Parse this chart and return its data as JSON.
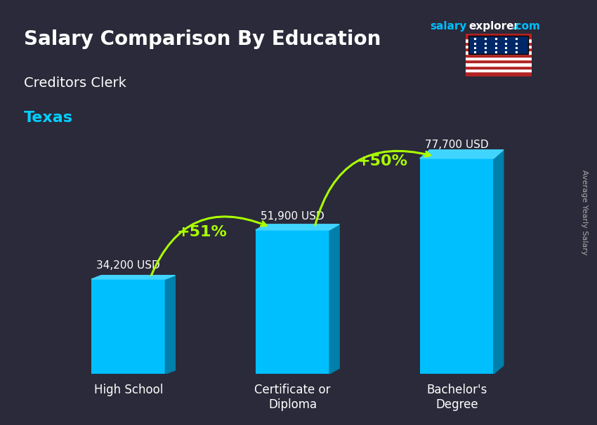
{
  "title": "Salary Comparison By Education",
  "subtitle1": "Creditors Clerk",
  "subtitle2": "Texas",
  "categories": [
    "High School",
    "Certificate or\nDiploma",
    "Bachelor's\nDegree"
  ],
  "values": [
    34200,
    51900,
    77700
  ],
  "value_labels": [
    "34,200 USD",
    "51,900 USD",
    "77,700 USD"
  ],
  "pct_labels": [
    "+51%",
    "+50%"
  ],
  "bar_color_face": "#00BFFF",
  "bar_color_side": "#0080AA",
  "bar_color_top": "#40D4FF",
  "bg_color": "#2a2a3a",
  "title_color": "#FFFFFF",
  "subtitle1_color": "#FFFFFF",
  "subtitle2_color": "#00CFFF",
  "label_color": "#FFFFFF",
  "pct_color": "#AAFF00",
  "arrow_color": "#AAFF00",
  "watermark": "salaryexplorer.com",
  "watermark_salary": "salary",
  "watermark_explorer": "explorer",
  "ylabel_text": "Average Yearly Salary",
  "ylim": [
    0,
    95000
  ],
  "bar_width": 0.45
}
